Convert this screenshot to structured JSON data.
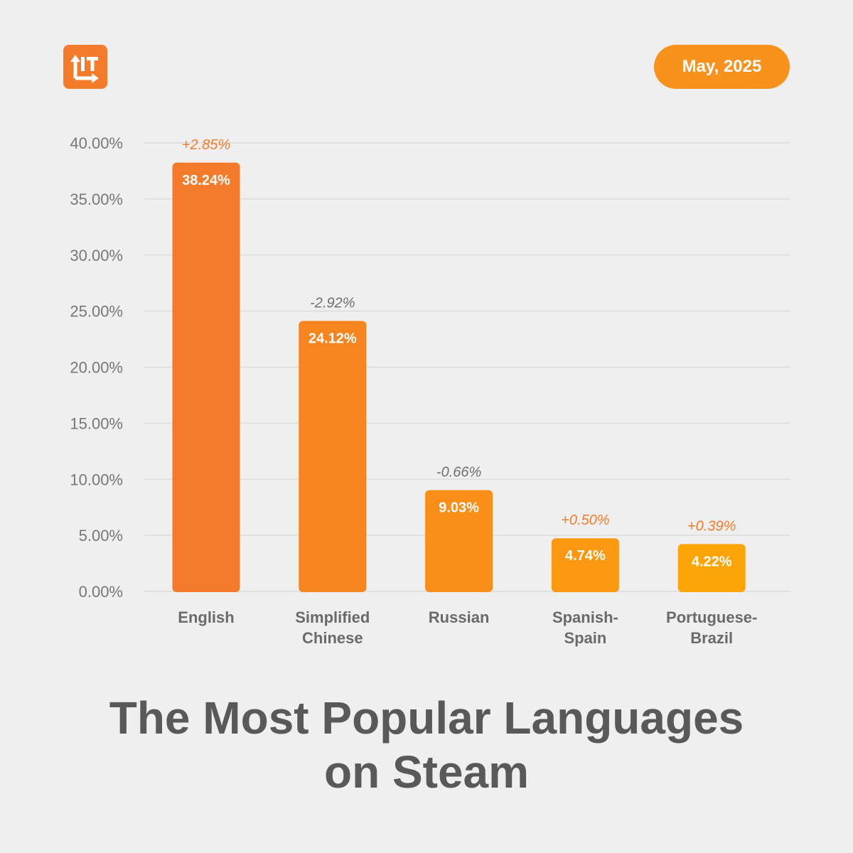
{
  "header": {
    "logo_icon": "lit-logo-icon",
    "date_label": "May, 2025"
  },
  "title": {
    "line1": "The Most Popular Languages",
    "line2": "on Steam"
  },
  "colors": {
    "background": "#efefef",
    "brand": "#f47b2a",
    "positive_change": "#f47b2a",
    "negative_change": "#6f6f6f",
    "axis_text": "#777777",
    "category_text": "#6a6a6a",
    "grid": "#dcdcdc"
  },
  "chart_data": {
    "type": "bar",
    "title": "The Most Popular Languages on Steam",
    "categories": [
      [
        "English"
      ],
      [
        "Simplified",
        "Chinese"
      ],
      [
        "Russian"
      ],
      [
        "Spanish-",
        "Spain"
      ],
      [
        "Portuguese-",
        "Brazil"
      ]
    ],
    "values": [
      38.24,
      24.12,
      9.03,
      4.74,
      4.22
    ],
    "value_labels": [
      "38.24%",
      "24.12%",
      "9.03%",
      "4.74%",
      "4.22%"
    ],
    "changes": [
      "+2.85%",
      "-2.92%",
      "-0.66%",
      "+0.50%",
      "+0.39%"
    ],
    "bar_colors": [
      "#f47b2a",
      "#f6841f",
      "#f98e18",
      "#fb9812",
      "#fda408"
    ],
    "ylim": [
      0,
      40
    ],
    "yticks": [
      0,
      5,
      10,
      15,
      20,
      25,
      30,
      35,
      40
    ],
    "ytick_labels": [
      "0.00%",
      "5.00%",
      "10.00%",
      "15.00%",
      "20.00%",
      "25.00%",
      "30.00%",
      "35.00%",
      "40.00%"
    ],
    "grid": true,
    "xlabel": "",
    "ylabel": ""
  }
}
